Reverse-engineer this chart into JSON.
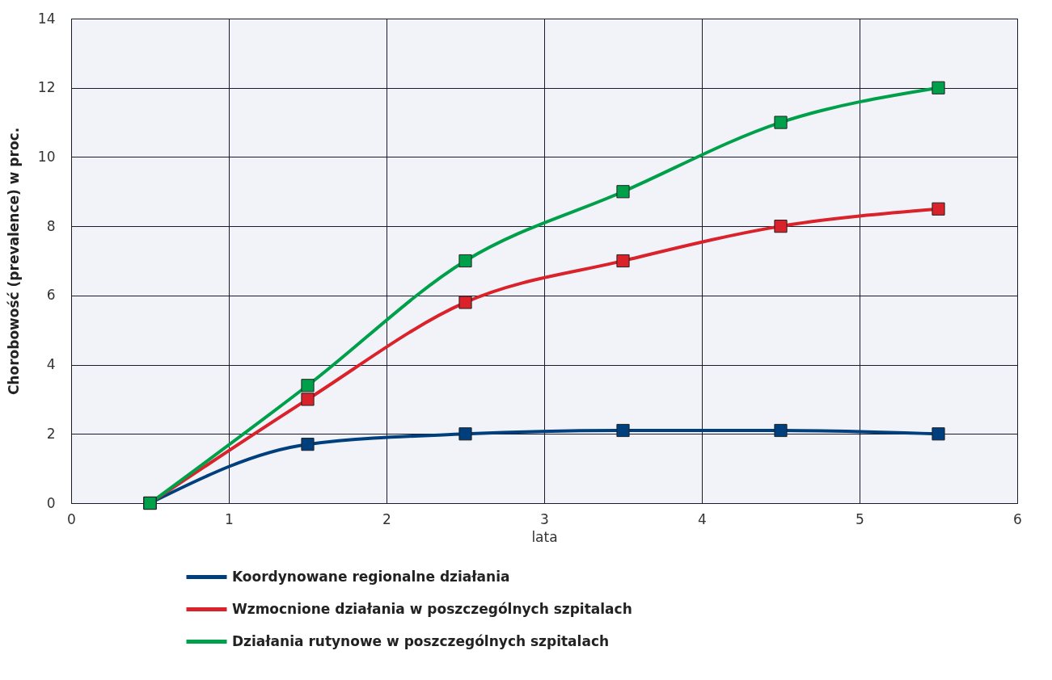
{
  "chart_data": {
    "type": "line",
    "xlabel": "lata",
    "ylabel": "Chorobowość (prevalence) w proc.",
    "x": [
      0.5,
      1.5,
      2.5,
      3.5,
      4.5,
      5.5
    ],
    "series": [
      {
        "name": "Koordynowane regionalne działania",
        "color": "#003f7d",
        "values": [
          0,
          1.7,
          2.0,
          2.1,
          2.1,
          2.0
        ]
      },
      {
        "name": "Wzmocnione działania w poszczególnych szpitalach",
        "color": "#d9222a",
        "values": [
          0,
          3.0,
          5.8,
          7.0,
          8.0,
          8.5
        ]
      },
      {
        "name": "Działania rutynowe w poszczególnych szpitalach",
        "color": "#00a04b",
        "values": [
          0,
          3.4,
          7.0,
          9.0,
          11.0,
          12.0
        ]
      }
    ],
    "xlim": [
      0,
      6
    ],
    "xticks": [
      0,
      1,
      2,
      3,
      4,
      5,
      6
    ],
    "ylim": [
      0,
      14
    ],
    "yticks": [
      0,
      2,
      4,
      6,
      8,
      10,
      12,
      14
    ],
    "grid": true,
    "legend": "bottom",
    "marker": "square",
    "line_style": "solid"
  }
}
